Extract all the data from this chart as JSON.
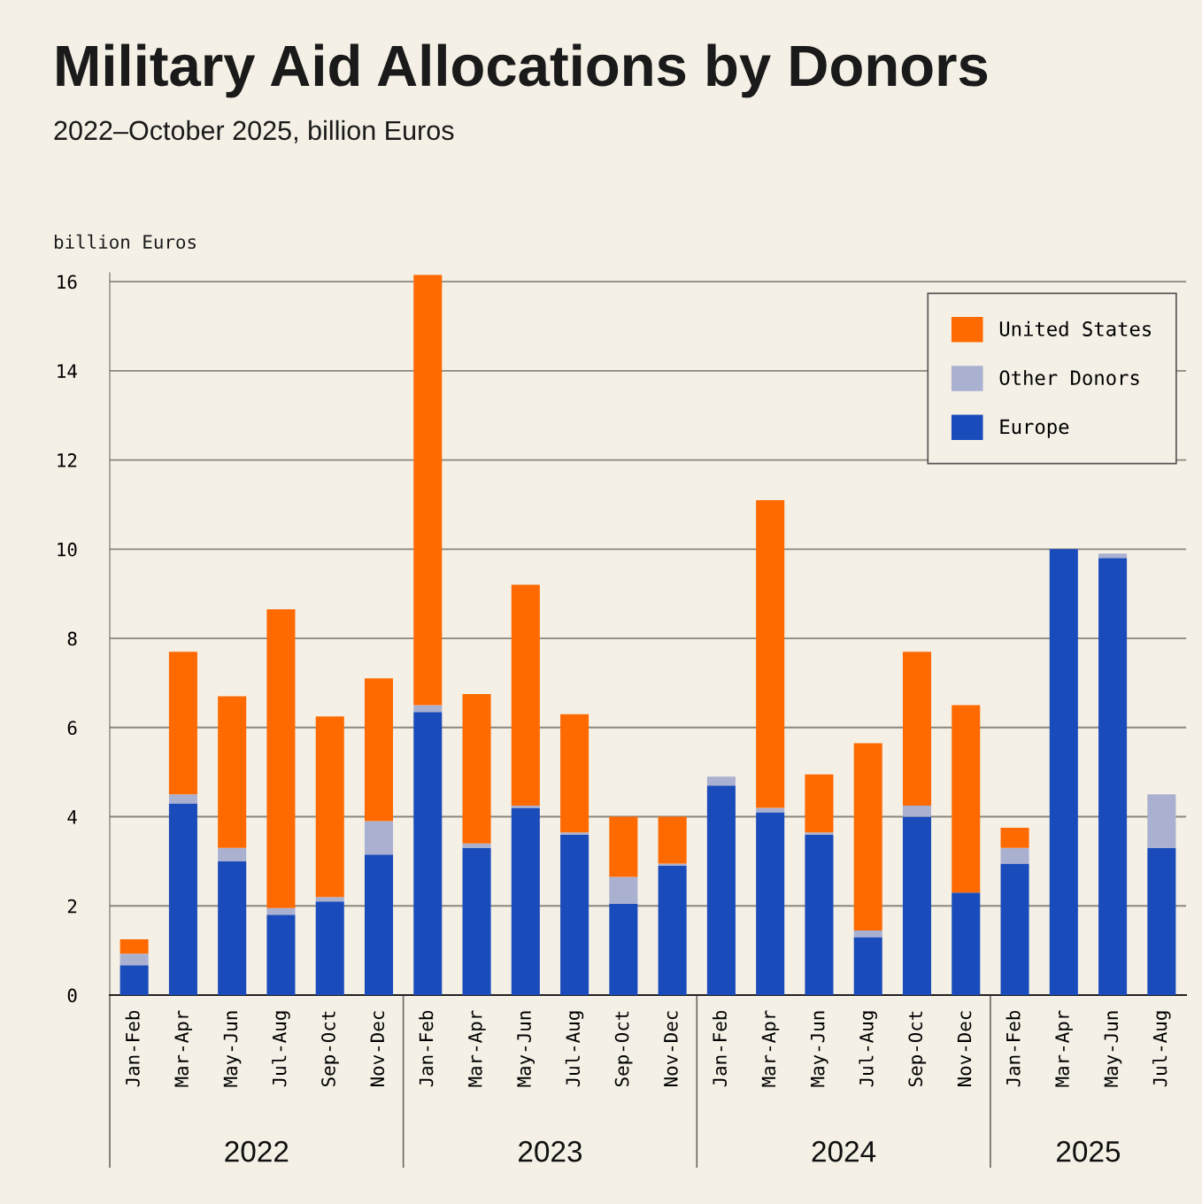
{
  "chart_data": {
    "type": "bar",
    "title": "Military Aid Allocations by Donors",
    "subtitle": "2022–October 2025, billion Euros",
    "ylabel": "billion Euros",
    "categories": [
      "Jan-Feb",
      "Mar-Apr",
      "May-Jun",
      "Jul-Aug",
      "Sep-Oct",
      "Nov-Dec",
      "Jan-Feb",
      "Mar-Apr",
      "May-Jun",
      "Jul-Aug",
      "Sep-Oct",
      "Nov-Dec",
      "Jan-Feb",
      "Mar-Apr",
      "May-Jun",
      "Jul-Aug",
      "Sep-Oct",
      "Nov-Dec",
      "Jan-Feb",
      "Mar-Apr",
      "May-Jun",
      "Jul-Aug"
    ],
    "stacked": true,
    "series": [
      {
        "name": "Europe",
        "color": "#1a4bbb",
        "values": [
          0.67,
          4.3,
          3.0,
          1.8,
          2.1,
          3.15,
          6.35,
          3.3,
          4.2,
          3.6,
          2.05,
          2.9,
          4.7,
          4.1,
          3.6,
          1.3,
          4.0,
          2.3,
          2.95,
          10.0,
          9.8,
          3.3
        ]
      },
      {
        "name": "Other Donors",
        "color": "#aab0d0",
        "values": [
          0.26,
          0.2,
          0.3,
          0.15,
          0.1,
          0.75,
          0.15,
          0.1,
          0.05,
          0.05,
          0.6,
          0.05,
          0.2,
          0.1,
          0.05,
          0.15,
          0.25,
          0,
          0.35,
          0,
          0.1,
          1.2
        ]
      },
      {
        "name": "United States",
        "color": "#ff6a00",
        "values": [
          0.32,
          3.2,
          3.4,
          6.7,
          4.05,
          3.2,
          9.65,
          3.35,
          4.95,
          2.65,
          1.35,
          1.05,
          0,
          6.9,
          1.3,
          4.2,
          3.45,
          4.2,
          0.45,
          0,
          0,
          0
        ]
      }
    ],
    "annotations": [
      "2022",
      "2023",
      "2024",
      "2025"
    ],
    "ylim": [
      0,
      16.2
    ],
    "yticks": [
      0,
      2,
      4,
      6,
      8,
      10,
      12,
      14,
      16
    ],
    "grid": "y",
    "legend": "top right"
  }
}
